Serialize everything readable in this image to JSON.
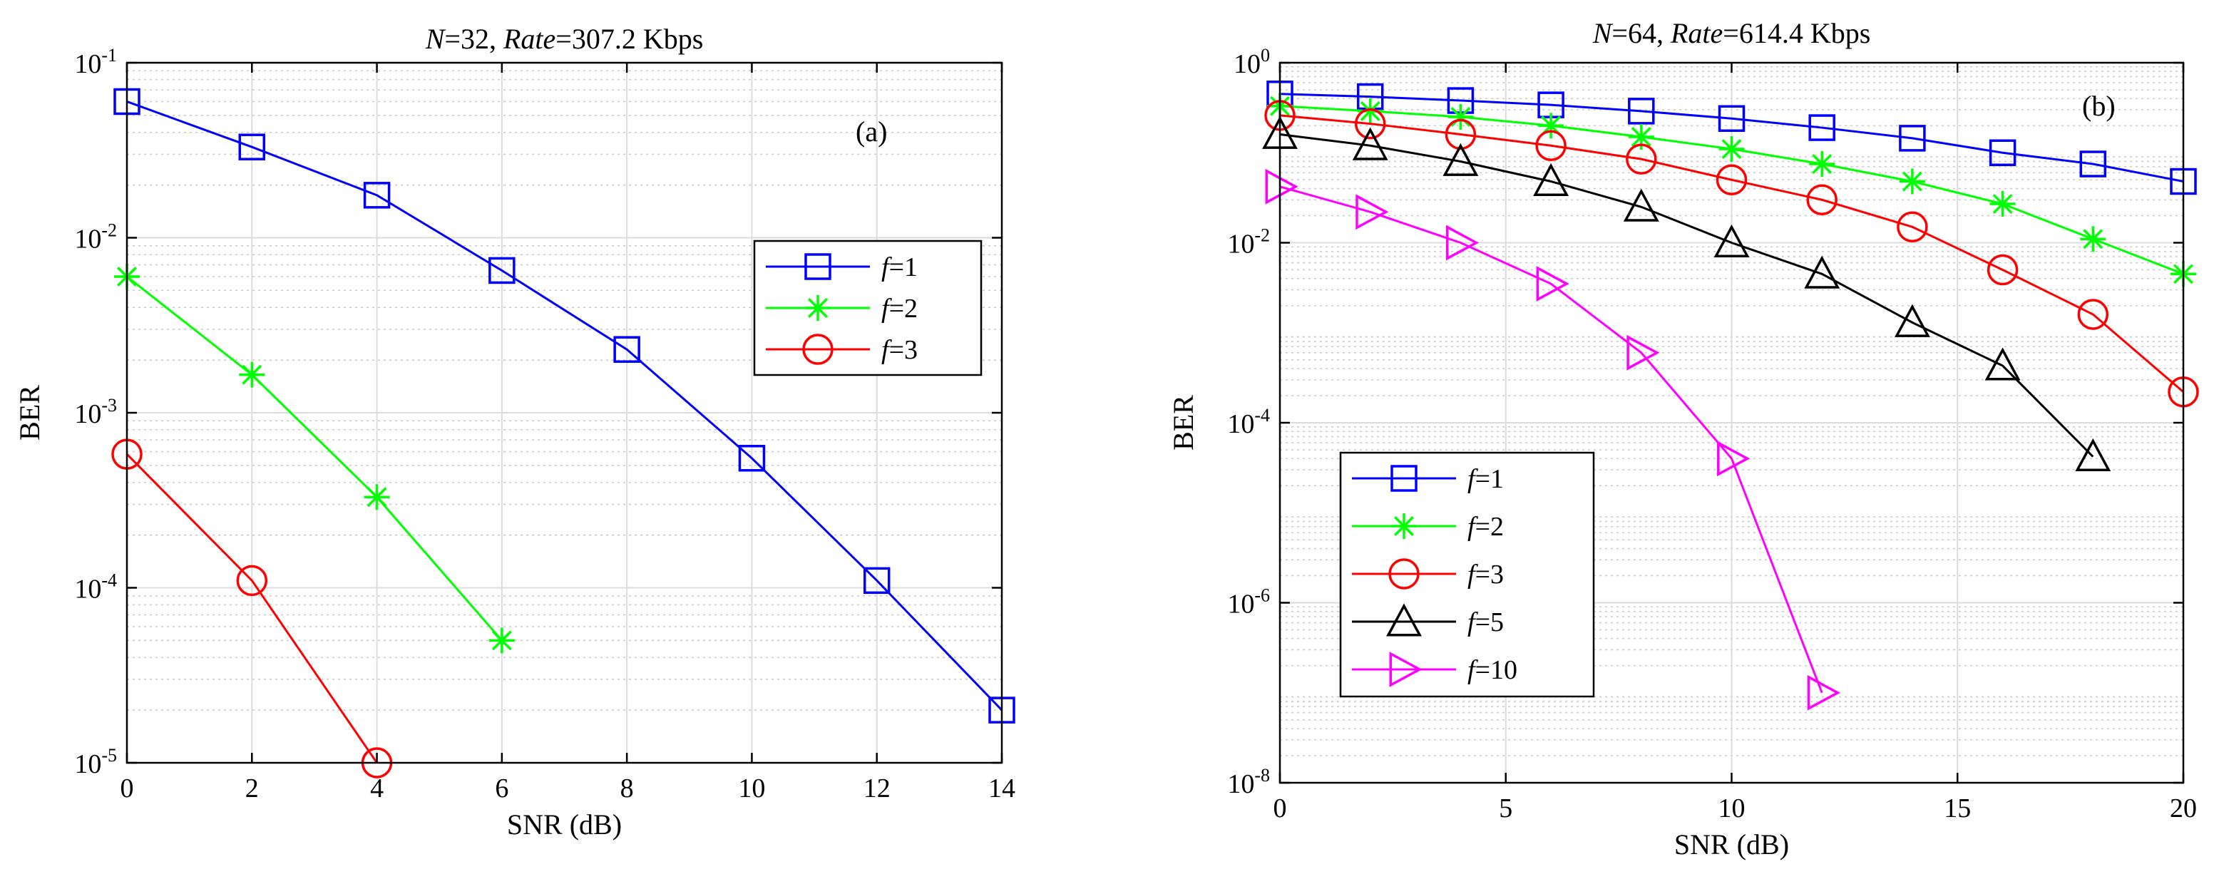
{
  "chart_data": [
    {
      "type": "line",
      "title_parts": {
        "n_label": "N",
        "n_value": "=32, ",
        "rate_label": "Rate",
        "rate_value": "=307.2 Kbps"
      },
      "panel_tag": "(a)",
      "xlabel": "SNR (dB)",
      "ylabel": "BER",
      "yscale": "log",
      "xlim": [
        0,
        14
      ],
      "ylim_exp": [
        -5,
        -1
      ],
      "xticks": [
        0,
        2,
        4,
        6,
        8,
        10,
        12,
        14
      ],
      "ytick_exps": [
        -5,
        -4,
        -3,
        -2,
        -1
      ],
      "grid": true,
      "legend_position": "right",
      "series": [
        {
          "name_prefix": "f",
          "name_suffix": "=1",
          "color": "#0000ff",
          "marker": "square",
          "x": [
            0,
            2,
            4,
            6,
            8,
            10,
            12,
            14
          ],
          "y": [
            0.06,
            0.033,
            0.0175,
            0.0065,
            0.0023,
            0.00055,
            0.00011,
            2e-05
          ]
        },
        {
          "name_prefix": "f",
          "name_suffix": "=2",
          "color": "#00ff00",
          "marker": "asterisk",
          "x": [
            0,
            2,
            4,
            6
          ],
          "y": [
            0.006,
            0.00165,
            0.00033,
            5e-05
          ]
        },
        {
          "name_prefix": "f",
          "name_suffix": "=3",
          "color": "#ff0000",
          "marker": "circle",
          "x": [
            0,
            2,
            4
          ],
          "y": [
            0.00058,
            0.00011,
            1e-05
          ]
        }
      ]
    },
    {
      "type": "line",
      "title_parts": {
        "n_label": "N",
        "n_value": "=64, ",
        "rate_label": "Rate",
        "rate_value": "=614.4 Kbps"
      },
      "panel_tag": "(b)",
      "xlabel": "SNR (dB)",
      "ylabel": "BER",
      "yscale": "log",
      "xlim": [
        0,
        20
      ],
      "ylim_exp": [
        -8,
        0
      ],
      "xticks": [
        0,
        5,
        10,
        15,
        20
      ],
      "ytick_exps": [
        -8,
        -6,
        -4,
        -2,
        0
      ],
      "grid": true,
      "legend_position": "bottom-left",
      "series": [
        {
          "name_prefix": "f",
          "name_suffix": "=1",
          "color": "#0000ff",
          "marker": "square",
          "x": [
            0,
            2,
            4,
            6,
            8,
            10,
            12,
            14,
            16,
            18,
            20
          ],
          "y": [
            0.45,
            0.42,
            0.38,
            0.34,
            0.29,
            0.24,
            0.19,
            0.145,
            0.1,
            0.075,
            0.048
          ]
        },
        {
          "name_prefix": "f",
          "name_suffix": "=2",
          "color": "#00ff00",
          "marker": "asterisk",
          "x": [
            0,
            2,
            4,
            6,
            8,
            10,
            12,
            14,
            16,
            18,
            20
          ],
          "y": [
            0.33,
            0.29,
            0.25,
            0.2,
            0.15,
            0.11,
            0.075,
            0.048,
            0.027,
            0.011,
            0.0045
          ]
        },
        {
          "name_prefix": "f",
          "name_suffix": "=3",
          "color": "#ff0000",
          "marker": "circle",
          "x": [
            0,
            2,
            4,
            6,
            8,
            10,
            12,
            14,
            16,
            18,
            20
          ],
          "y": [
            0.26,
            0.21,
            0.16,
            0.12,
            0.085,
            0.05,
            0.03,
            0.015,
            0.005,
            0.0016,
            0.00022
          ]
        },
        {
          "name_prefix": "f",
          "name_suffix": "=5",
          "color": "#000000",
          "marker": "triangle-up",
          "x": [
            0,
            2,
            4,
            6,
            8,
            10,
            12,
            14,
            16,
            18
          ],
          "y": [
            0.16,
            0.12,
            0.08,
            0.048,
            0.025,
            0.01,
            0.0045,
            0.0013,
            0.00043,
            4.2e-05
          ]
        },
        {
          "name_prefix": "f",
          "name_suffix": "=10",
          "color": "#ff00ff",
          "marker": "triangle-right",
          "x": [
            0,
            2,
            4,
            6,
            8,
            10,
            12
          ],
          "y": [
            0.042,
            0.022,
            0.01,
            0.0035,
            0.0006,
            4e-05,
            1e-07
          ]
        }
      ]
    }
  ]
}
